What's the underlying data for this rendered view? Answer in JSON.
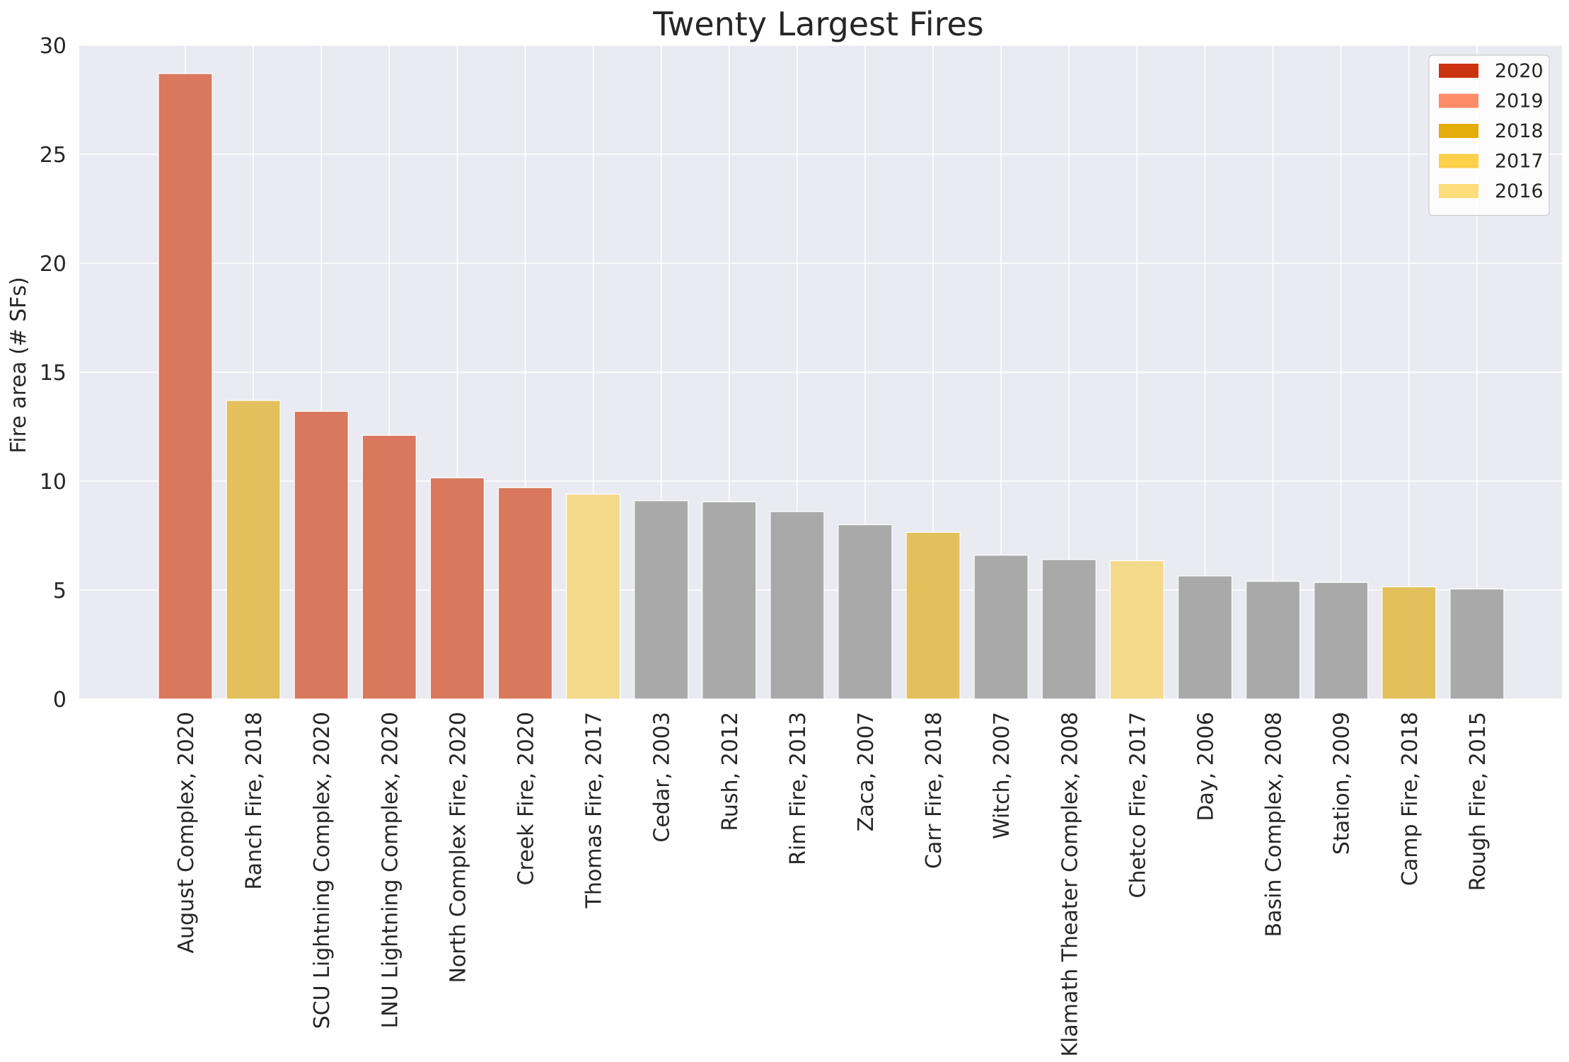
{
  "chart_data": {
    "type": "bar",
    "title": "Twenty Largest Fires",
    "xlabel": "",
    "ylabel": "Fire area   (# SFs)",
    "ylim": [
      0,
      30
    ],
    "yticks": [
      0,
      5,
      10,
      15,
      20,
      25,
      30
    ],
    "grid": true,
    "legend_position": "top-right",
    "legend": [
      {
        "label": "2020",
        "color": "#cc3311"
      },
      {
        "label": "2019",
        "color": "#ff8c69"
      },
      {
        "label": "2018",
        "color": "#e3ad0a"
      },
      {
        "label": "2017",
        "color": "#fdd04a"
      },
      {
        "label": "2016",
        "color": "#fddc7c"
      }
    ],
    "categories": [
      "August Complex, 2020",
      "Ranch Fire, 2018",
      "SCU Lightning Complex, 2020",
      "LNU Lightning Complex, 2020",
      "North Complex Fire, 2020",
      "Creek Fire, 2020",
      "Thomas Fire, 2017",
      "Cedar, 2003",
      "Rush, 2012",
      "Rim Fire, 2013",
      "Zaca, 2007",
      "Carr Fire, 2018",
      "Witch, 2007",
      "Klamath Theater Complex, 2008",
      "Chetco Fire, 2017",
      "Day, 2006",
      "Basin Complex, 2008",
      "Station, 2009",
      "Camp Fire, 2018",
      "Rough Fire, 2015"
    ],
    "values": [
      28.7,
      13.7,
      13.2,
      12.1,
      10.15,
      9.7,
      9.4,
      9.1,
      9.05,
      8.6,
      8.0,
      7.65,
      6.6,
      6.4,
      6.35,
      5.65,
      5.4,
      5.35,
      5.15,
      5.05
    ],
    "bar_colors": [
      "#d9785c",
      "#e3c05c",
      "#d9785c",
      "#d9785c",
      "#d9785c",
      "#d9785c",
      "#f5d98a",
      "#a9a9aa",
      "#a9a9aa",
      "#a9a9aa",
      "#a9a9aa",
      "#e3c05c",
      "#a9a9aa",
      "#a9a9aa",
      "#f5d98a",
      "#a9a9aa",
      "#a9a9aa",
      "#a9a9aa",
      "#e3c05c",
      "#a9a9aa"
    ],
    "plot_background": "#eaeaf2",
    "grid_color": "#ffffff"
  }
}
